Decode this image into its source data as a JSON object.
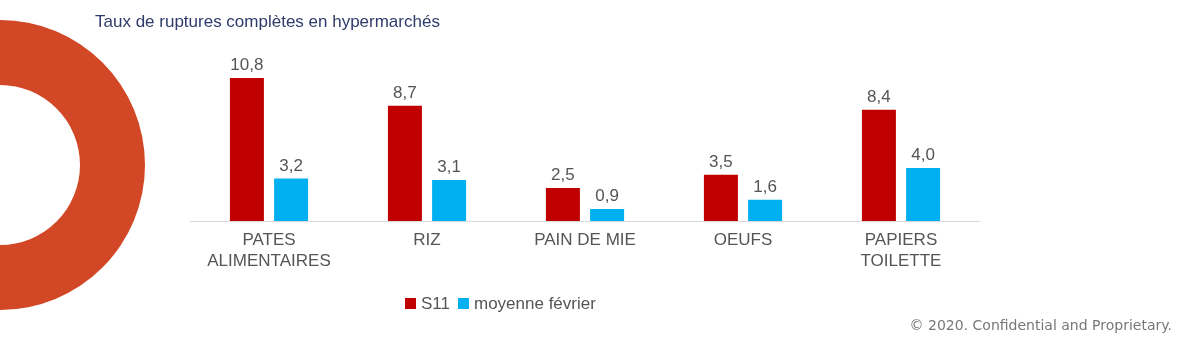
{
  "chart_data": {
    "type": "bar",
    "title": "Taux de ruptures complètes en hypermarchés",
    "categories": [
      "PATES\nALIMENTAIRES",
      "RIZ",
      "PAIN DE MIE",
      "OEUFS",
      "PAPIERS\nTOILETTE"
    ],
    "series": [
      {
        "name": "S11",
        "color": "#c00000",
        "values": [
          10.8,
          8.7,
          2.5,
          3.5,
          8.4
        ],
        "value_labels": [
          "10,8",
          "8,7",
          "2,5",
          "3,5",
          "8,4"
        ]
      },
      {
        "name": "moyenne février",
        "color": "#00b0f0",
        "values": [
          3.2,
          3.1,
          0.9,
          1.6,
          4.0
        ],
        "value_labels": [
          "3,2",
          "3,1",
          "0,9",
          "1,6",
          "4,0"
        ]
      }
    ],
    "legend": "bottom",
    "annotations": [
      "© 2020. Confidential and Proprietary."
    ]
  }
}
